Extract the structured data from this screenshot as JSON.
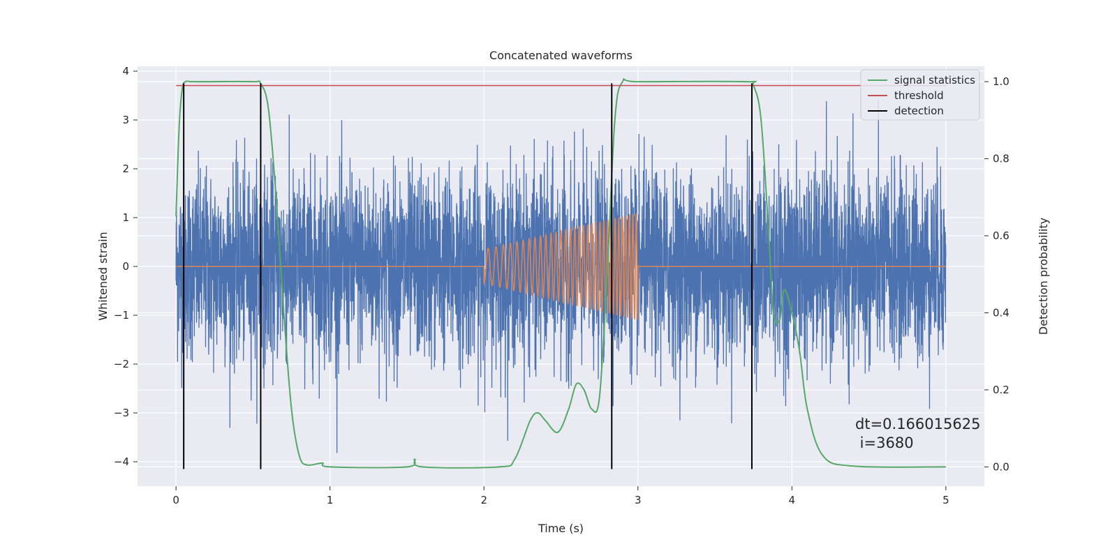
{
  "chart_data": {
    "type": "line",
    "title": "Concatenated waveforms",
    "xlabel": "Time (s)",
    "ylabel": "Whitened strain",
    "y2label": "Detection probability",
    "xlim": [
      -0.25,
      5.25
    ],
    "ylim": [
      -4.5,
      4.1
    ],
    "y2lim": [
      -0.05,
      1.04
    ],
    "x_ticks": [
      "0",
      "1",
      "2",
      "3",
      "4",
      "5"
    ],
    "x_tick_values": [
      0,
      1,
      2,
      3,
      4,
      5
    ],
    "y_ticks": [
      "−4",
      "−3",
      "−2",
      "−1",
      "0",
      "1",
      "2",
      "3",
      "4"
    ],
    "y_tick_values": [
      -4,
      -3,
      -2,
      -1,
      0,
      1,
      2,
      3,
      4
    ],
    "y2_ticks": [
      "0.0",
      "0.2",
      "0.4",
      "0.6",
      "0.8",
      "1.0"
    ],
    "y2_tick_values": [
      0.0,
      0.2,
      0.4,
      0.6,
      0.8,
      1.0
    ],
    "grid": true,
    "legend_position": "top-right",
    "legend": [
      "signal statistics",
      "threshold",
      "detection"
    ],
    "colors": {
      "strain": "#4c72b0",
      "injected": "#dd8452",
      "signal_statistics": "#55a868",
      "threshold": "#c44e52",
      "detection": "#000000",
      "axes_bg": "#eaeaf2",
      "grid": "#ffffff"
    },
    "series": [
      {
        "name": "",
        "axis": "left",
        "description": "noise strain",
        "x_range": [
          0,
          5
        ],
        "amplitude_range": [
          -4.2,
          3.7
        ]
      },
      {
        "name": "",
        "axis": "left",
        "description": "chirp",
        "x_range": [
          2,
          3
        ],
        "amplitude_start": 0.35,
        "amplitude_end": 1.1
      },
      {
        "name": "signal statistics",
        "axis": "right",
        "x": [
          0,
          0.02,
          0.04,
          0.06,
          0.1,
          0.2,
          0.5,
          0.55,
          0.6,
          0.65,
          0.7,
          0.75,
          0.8,
          0.85,
          0.95,
          1.0,
          1.5,
          1.55,
          1.6,
          2.1,
          2.2,
          2.3,
          2.35,
          2.4,
          2.48,
          2.55,
          2.6,
          2.65,
          2.7,
          2.75,
          2.8,
          2.85,
          2.9,
          3.0,
          3.7,
          3.75,
          3.8,
          3.85,
          3.88,
          3.92,
          3.95,
          4.0,
          4.05,
          4.1,
          4.2,
          4.4,
          5.0
        ],
        "y": [
          0.65,
          0.88,
          0.98,
          1.0,
          1.0,
          1.0,
          1.0,
          0.995,
          0.93,
          0.7,
          0.4,
          0.15,
          0.03,
          0.005,
          0.01,
          0.0,
          0.0,
          0.02,
          0.0,
          0.0,
          0.02,
          0.12,
          0.14,
          0.12,
          0.09,
          0.15,
          0.215,
          0.2,
          0.15,
          0.18,
          0.5,
          0.9,
          1.0,
          1.0,
          1.0,
          0.99,
          0.9,
          0.6,
          0.4,
          0.38,
          0.46,
          0.4,
          0.3,
          0.15,
          0.03,
          0.002,
          0.0
        ]
      },
      {
        "name": "threshold",
        "axis": "right",
        "x": [
          0,
          5
        ],
        "y": [
          0.99,
          0.99
        ]
      },
      {
        "name": "detection",
        "axis": "left",
        "x": [
          0.05,
          0.55,
          2.83,
          3.74
        ],
        "y_range": [
          -4.15,
          3.75
        ]
      }
    ],
    "annotation": [
      "dt=0.166015625",
      " i=3680"
    ]
  }
}
